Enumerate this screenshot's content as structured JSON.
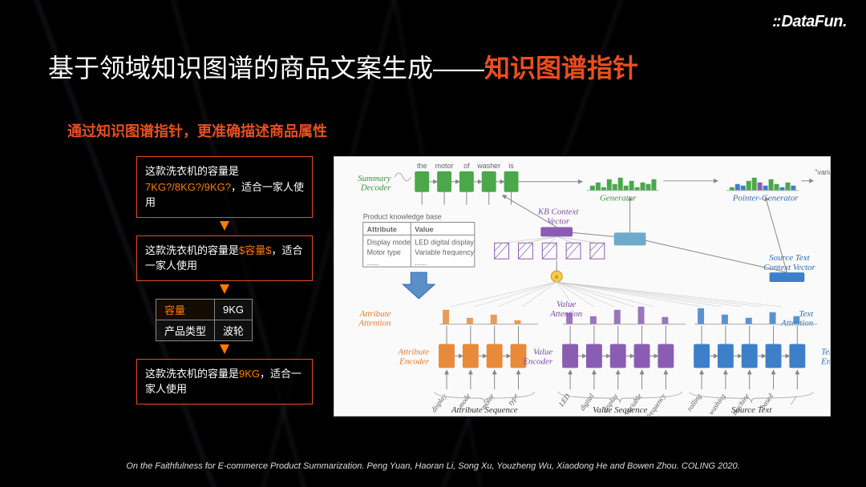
{
  "logo": "DataFun.",
  "title_plain": "基于领域知识图谱的商品文案生成——",
  "title_accent": "知识图谱指针",
  "subtitle": "通过知识图谱指针，更准确描述商品属性",
  "box1": {
    "pre": "这款洗衣机的容量是",
    "hl": "7KG?/8KG?/9KG?",
    "post": "，适合一家人使用"
  },
  "box2": {
    "pre": "这款洗衣机的容量是",
    "hl": "$容量$",
    "post": "，适合一家人使用"
  },
  "kv": {
    "r1k": "容量",
    "r1v": "9KG",
    "r2k": "产品类型",
    "r2v": "波轮"
  },
  "box3": {
    "pre": "这款洗衣机的容量是",
    "hl": "9KG",
    "post": "，适合一家人使用"
  },
  "citation": "On the Faithfulness for E-commerce Product Summarization. Peng Yuan, Haoran Li, Song Xu, Youzheng Wu, Xiaodong He and Bowen Zhou. COLING 2020.",
  "diagram": {
    "summary_decoder": {
      "label": "Summary\nDecoder",
      "words": [
        "the",
        "motor",
        "of",
        "washer",
        "is"
      ],
      "color": "#4aa84a"
    },
    "generator": {
      "label": "Generator",
      "bars": [
        3,
        5,
        2,
        7,
        4,
        8,
        3,
        6,
        2,
        5,
        4,
        7
      ],
      "color": "#4aa84a"
    },
    "pointer_gen": {
      "label": "Pointer-Generator",
      "bars": [
        2,
        4,
        3,
        6,
        8,
        5,
        3,
        7,
        4,
        2,
        5,
        3
      ],
      "colors": [
        "#4aa84a",
        "#3d7fc9",
        "#3d7fc9",
        "#4aa84a",
        "#4aa84a",
        "#8a5db3",
        "#3d7fc9",
        "#4aa84a",
        "#4aa84a",
        "#3d7fc9",
        "#4aa84a",
        "#3d7fc9"
      ]
    },
    "variable_label": "\"variable\"",
    "kb": {
      "title": "Product knowledge base",
      "headers": [
        "Attribute",
        "Value"
      ],
      "rows": [
        [
          "Display mode",
          "LED digital display"
        ],
        [
          "Motor type",
          "Variable frequency"
        ],
        [
          "......",
          "......"
        ]
      ]
    },
    "kb_context": "KB Context\nVector",
    "source_context": "Source Text\nContext Vector",
    "attr_attention": "Attribute\nAttention",
    "val_attention": "Value\nAttention",
    "text_attention": "Text\nAttention",
    "attr_encoder": {
      "label": "Attribute\nEncoder",
      "tokens": [
        "display",
        "mode",
        "motor",
        "type"
      ],
      "color": "#e88a3a"
    },
    "val_encoder": {
      "label": "Value\nEncoder",
      "tokens": [
        "LED",
        "digital",
        "display",
        "variable",
        "frequency"
      ],
      "color": "#8a5db3"
    },
    "text_encoder": {
      "label": "Text\nEncoder",
      "tokens": [
        "rolling",
        "washing",
        "machine",
        "based",
        "......"
      ],
      "color": "#3d7fc9"
    },
    "seq_labels": [
      "Attribute Sequence",
      "Value Sequence",
      "Source Text"
    ]
  }
}
